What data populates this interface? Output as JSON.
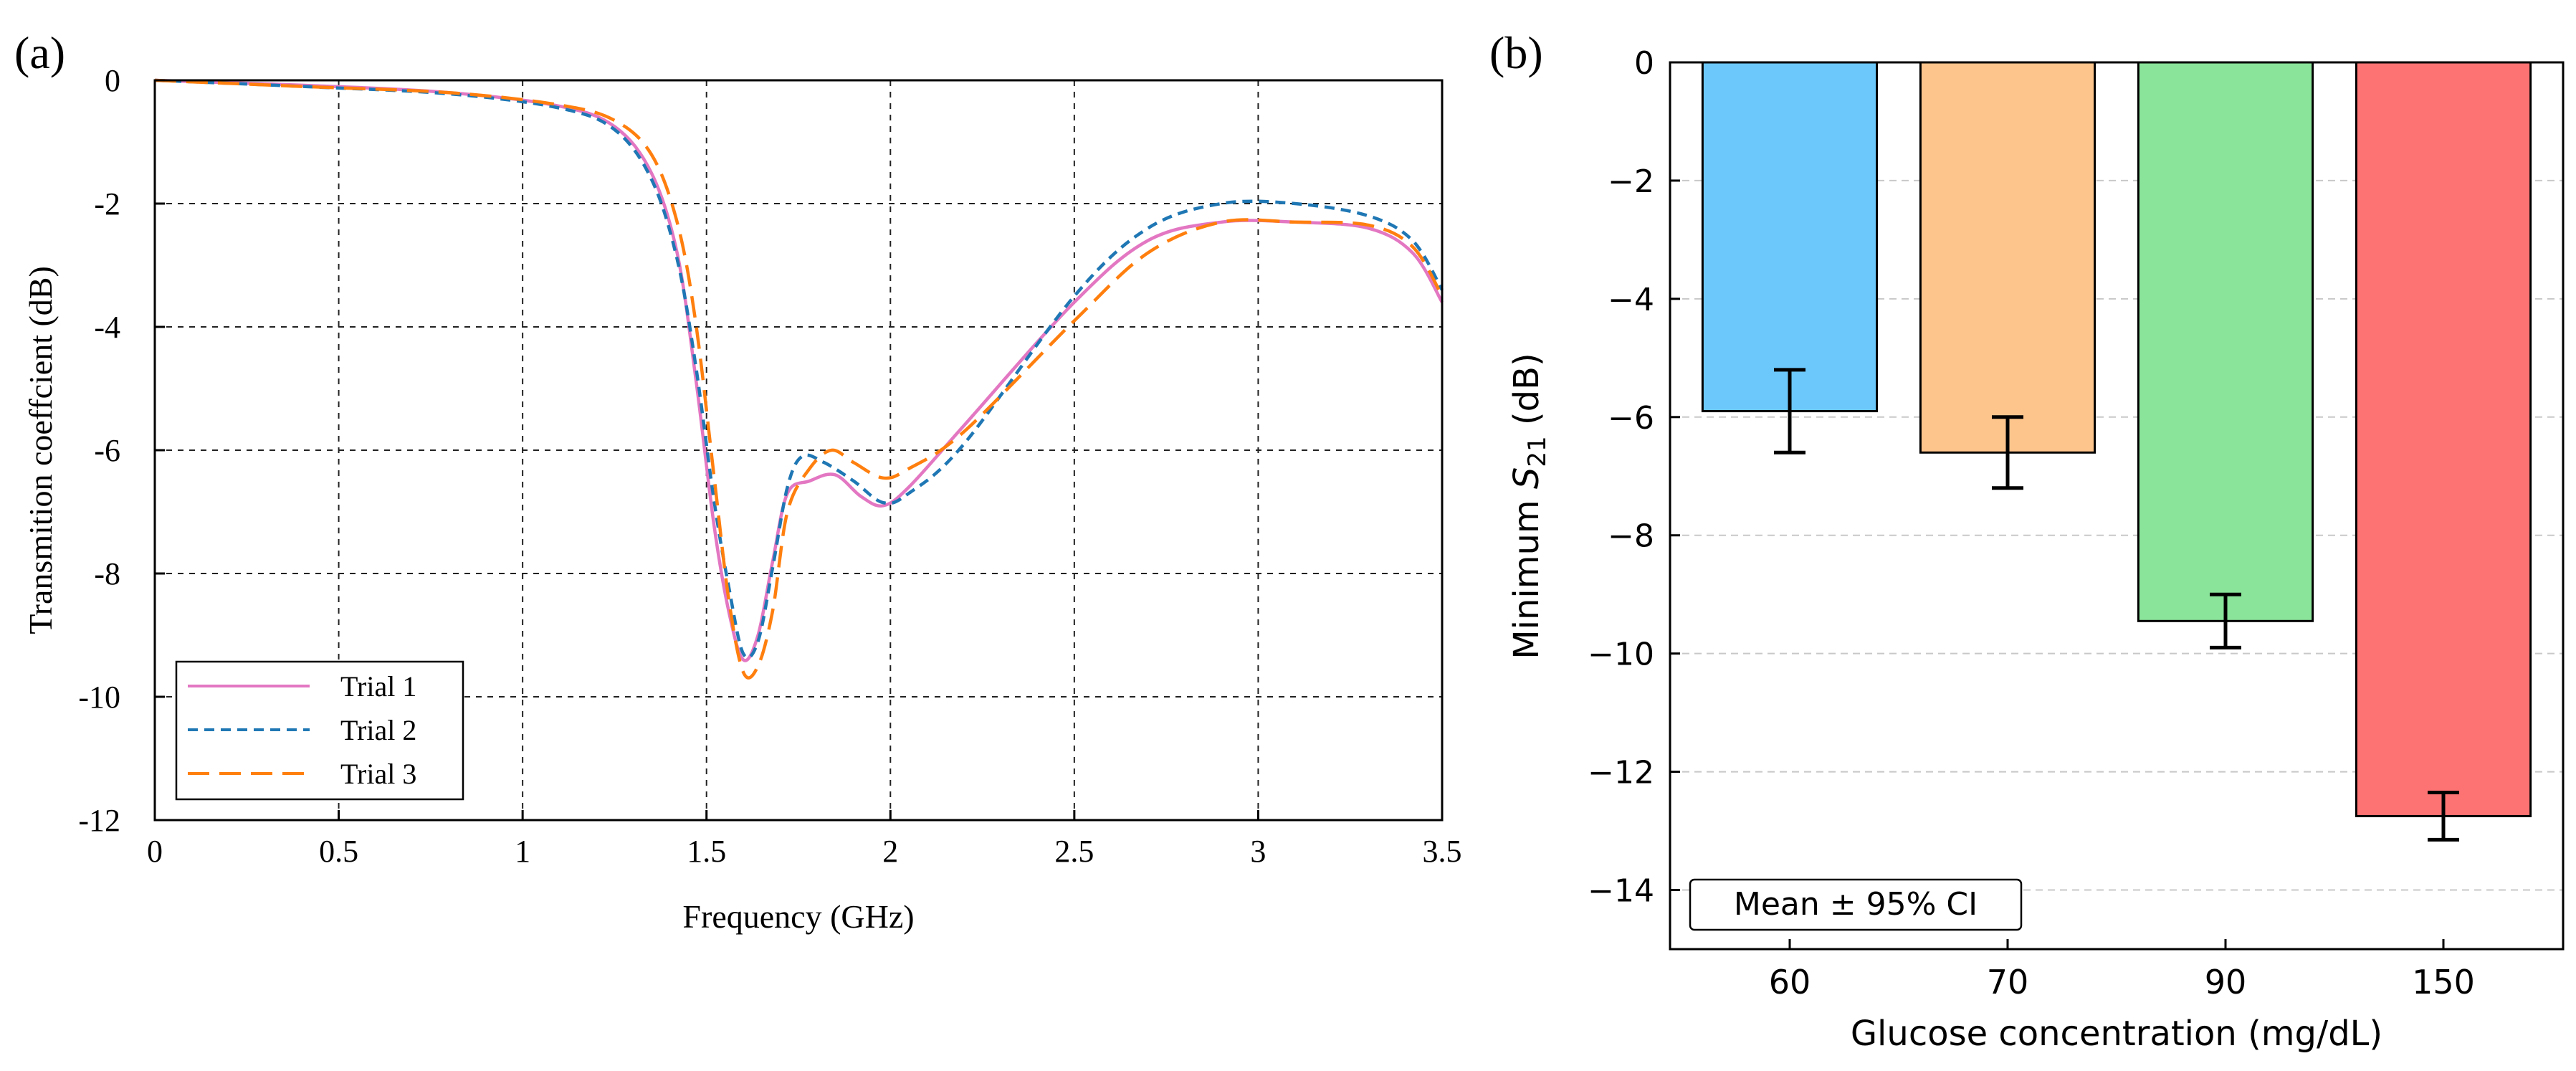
{
  "chart_data": [
    {
      "panel_label": "(a)",
      "type": "line",
      "title": "",
      "xlabel": "Frequency (GHz)",
      "ylabel": "Transmition coeffcient (dB)",
      "xlim": [
        0,
        3.5
      ],
      "ylim": [
        -12,
        0
      ],
      "xticks": [
        0,
        0.5,
        1,
        1.5,
        2,
        2.5,
        3,
        3.5
      ],
      "xtick_labels": [
        "0",
        "0.5",
        "1",
        "1.5",
        "2",
        "2.5",
        "3",
        "3.5"
      ],
      "yticks": [
        0,
        -2,
        -4,
        -6,
        -8,
        -10,
        -12
      ],
      "ytick_labels": [
        "0",
        "-2",
        "-4",
        "-6",
        "-8",
        "-10",
        "-12"
      ],
      "grid": true,
      "legend_position": "lower-left",
      "series": [
        {
          "name": "Trial 1",
          "color": "#e377c2",
          "dash": "solid",
          "x": [
            0,
            0.4,
            0.8,
            1.1,
            1.25,
            1.35,
            1.42,
            1.47,
            1.52,
            1.56,
            1.6,
            1.64,
            1.68,
            1.72,
            1.78,
            1.85,
            1.92,
            1.98,
            2.05,
            2.2,
            2.5,
            2.7,
            2.9,
            3.1,
            3.3,
            3.42,
            3.5
          ],
          "y": [
            0,
            -0.08,
            -0.2,
            -0.42,
            -0.75,
            -1.5,
            -2.8,
            -4.8,
            -7.2,
            -8.6,
            -9.4,
            -9.0,
            -7.8,
            -6.7,
            -6.5,
            -6.4,
            -6.75,
            -6.9,
            -6.6,
            -5.6,
            -3.6,
            -2.6,
            -2.3,
            -2.3,
            -2.4,
            -2.8,
            -3.6
          ]
        },
        {
          "name": "Trial 2",
          "color": "#1f77b4",
          "dash": "short",
          "x": [
            0,
            0.4,
            0.8,
            1.1,
            1.25,
            1.35,
            1.42,
            1.47,
            1.52,
            1.56,
            1.6,
            1.64,
            1.68,
            1.72,
            1.76,
            1.82,
            1.9,
            1.98,
            2.05,
            2.2,
            2.5,
            2.7,
            2.9,
            3.1,
            3.3,
            3.42,
            3.5
          ],
          "y": [
            0,
            -0.1,
            -0.22,
            -0.45,
            -0.8,
            -1.6,
            -2.9,
            -4.6,
            -6.8,
            -8.2,
            -9.3,
            -9.1,
            -7.9,
            -6.6,
            -6.1,
            -6.2,
            -6.5,
            -6.85,
            -6.7,
            -5.9,
            -3.5,
            -2.4,
            -2.0,
            -2.0,
            -2.2,
            -2.6,
            -3.4
          ]
        },
        {
          "name": "Trial 3",
          "color": "#ff7f0e",
          "dash": "long",
          "x": [
            0,
            0.4,
            0.8,
            1.1,
            1.25,
            1.35,
            1.42,
            1.47,
            1.52,
            1.56,
            1.6,
            1.64,
            1.68,
            1.72,
            1.78,
            1.84,
            1.9,
            1.98,
            2.05,
            2.2,
            2.5,
            2.7,
            2.9,
            3.1,
            3.3,
            3.42,
            3.5
          ],
          "y": [
            0,
            -0.1,
            -0.2,
            -0.4,
            -0.65,
            -1.2,
            -2.3,
            -3.9,
            -6.4,
            -8.4,
            -9.6,
            -9.5,
            -8.6,
            -7.0,
            -6.3,
            -6.0,
            -6.2,
            -6.45,
            -6.3,
            -5.7,
            -3.9,
            -2.8,
            -2.3,
            -2.3,
            -2.35,
            -2.7,
            -3.5
          ]
        }
      ]
    },
    {
      "panel_label": "(b)",
      "type": "bar",
      "title": "",
      "xlabel": "Glucose concentration (mg/dL)",
      "ylabel": "Minimum S21 (dB)",
      "ylabel_main": "Minimum ",
      "ylabel_symbol": "S",
      "ylabel_subscript": "21",
      "ylabel_unit": " (dB)",
      "categories": [
        "60",
        "70",
        "90",
        "150"
      ],
      "values": [
        -5.9,
        -6.6,
        -9.45,
        -12.75
      ],
      "error": [
        0.7,
        0.6,
        0.45,
        0.4
      ],
      "bar_colors": [
        "#6cc8fb",
        "#fdc48b",
        "#8ae49a",
        "#fd7373"
      ],
      "ylim": [
        -15,
        0
      ],
      "yticks": [
        0,
        -2,
        -4,
        -6,
        -8,
        -10,
        -12,
        -14
      ],
      "ytick_labels": [
        "0",
        "−2",
        "−4",
        "−6",
        "−8",
        "−10",
        "−12",
        "−14"
      ],
      "grid": true,
      "annotation": "Mean ± 95% CI",
      "annotation_position": "bottom-left"
    }
  ]
}
